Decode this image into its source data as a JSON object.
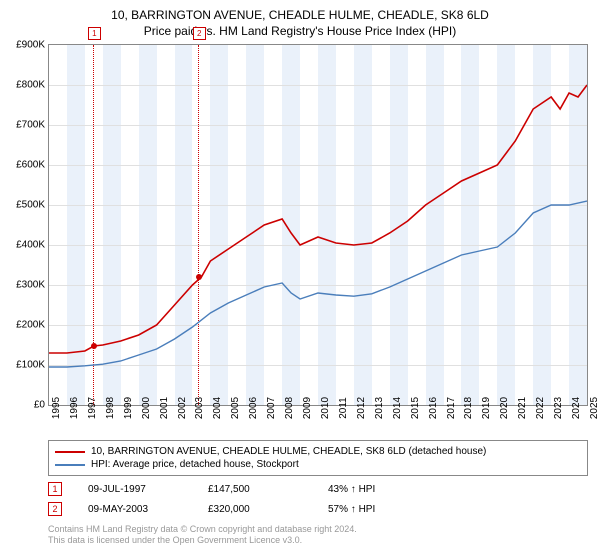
{
  "title_line1": "10, BARRINGTON AVENUE, CHEADLE HULME, CHEADLE, SK8 6LD",
  "title_line2": "Price paid vs. HM Land Registry's House Price Index (HPI)",
  "chart": {
    "type": "line",
    "xlim": [
      1995,
      2025
    ],
    "ylim": [
      0,
      900000
    ],
    "ytick_step": 100000,
    "ytick_labels": [
      "£0",
      "£100K",
      "£200K",
      "£300K",
      "£400K",
      "£500K",
      "£600K",
      "£700K",
      "£800K",
      "£900K"
    ],
    "xtick_step": 1,
    "xtick_labels": [
      "1995",
      "1996",
      "1997",
      "1998",
      "1999",
      "2000",
      "2001",
      "2002",
      "2003",
      "2004",
      "2005",
      "2006",
      "2007",
      "2008",
      "2009",
      "2010",
      "2011",
      "2012",
      "2013",
      "2014",
      "2015",
      "2016",
      "2017",
      "2018",
      "2019",
      "2020",
      "2021",
      "2022",
      "2023",
      "2024",
      "2025"
    ],
    "background_color": "#ffffff",
    "grid_color": "#e0e0e0",
    "shade_band_color": "#eaf1fa",
    "series": [
      {
        "name": "property",
        "color": "#cc0000",
        "width": 1.6,
        "points": [
          [
            1995,
            130000
          ],
          [
            1996,
            130000
          ],
          [
            1997,
            135000
          ],
          [
            1997.5,
            147500
          ],
          [
            1998,
            150000
          ],
          [
            1999,
            160000
          ],
          [
            2000,
            175000
          ],
          [
            2001,
            200000
          ],
          [
            2002,
            250000
          ],
          [
            2003,
            300000
          ],
          [
            2003.5,
            320000
          ],
          [
            2004,
            360000
          ],
          [
            2005,
            390000
          ],
          [
            2006,
            420000
          ],
          [
            2007,
            450000
          ],
          [
            2008,
            465000
          ],
          [
            2008.5,
            430000
          ],
          [
            2009,
            400000
          ],
          [
            2010,
            420000
          ],
          [
            2011,
            405000
          ],
          [
            2012,
            400000
          ],
          [
            2013,
            405000
          ],
          [
            2014,
            430000
          ],
          [
            2015,
            460000
          ],
          [
            2016,
            500000
          ],
          [
            2017,
            530000
          ],
          [
            2018,
            560000
          ],
          [
            2019,
            580000
          ],
          [
            2020,
            600000
          ],
          [
            2021,
            660000
          ],
          [
            2022,
            740000
          ],
          [
            2023,
            770000
          ],
          [
            2023.5,
            740000
          ],
          [
            2024,
            780000
          ],
          [
            2024.5,
            770000
          ],
          [
            2025,
            800000
          ]
        ]
      },
      {
        "name": "hpi",
        "color": "#4a7ebb",
        "width": 1.4,
        "points": [
          [
            1995,
            95000
          ],
          [
            1996,
            95000
          ],
          [
            1997,
            98000
          ],
          [
            1998,
            102000
          ],
          [
            1999,
            110000
          ],
          [
            2000,
            125000
          ],
          [
            2001,
            140000
          ],
          [
            2002,
            165000
          ],
          [
            2003,
            195000
          ],
          [
            2004,
            230000
          ],
          [
            2005,
            255000
          ],
          [
            2006,
            275000
          ],
          [
            2007,
            295000
          ],
          [
            2008,
            305000
          ],
          [
            2008.5,
            280000
          ],
          [
            2009,
            265000
          ],
          [
            2010,
            280000
          ],
          [
            2011,
            275000
          ],
          [
            2012,
            272000
          ],
          [
            2013,
            278000
          ],
          [
            2014,
            295000
          ],
          [
            2015,
            315000
          ],
          [
            2016,
            335000
          ],
          [
            2017,
            355000
          ],
          [
            2018,
            375000
          ],
          [
            2019,
            385000
          ],
          [
            2020,
            395000
          ],
          [
            2021,
            430000
          ],
          [
            2022,
            480000
          ],
          [
            2023,
            500000
          ],
          [
            2024,
            500000
          ],
          [
            2025,
            510000
          ]
        ]
      }
    ],
    "sale_markers": [
      {
        "id": "1",
        "x": 1997.5,
        "y": 147500,
        "color": "#cc0000"
      },
      {
        "id": "2",
        "x": 2003.35,
        "y": 320000,
        "color": "#cc0000"
      }
    ]
  },
  "legend": [
    {
      "color": "#cc0000",
      "label": "10, BARRINGTON AVENUE, CHEADLE HULME, CHEADLE, SK8 6LD (detached house)"
    },
    {
      "color": "#4a7ebb",
      "label": "HPI: Average price, detached house, Stockport"
    }
  ],
  "transactions": [
    {
      "id": "1",
      "color": "#cc0000",
      "date": "09-JUL-1997",
      "price": "£147,500",
      "diff": "43% ↑ HPI"
    },
    {
      "id": "2",
      "color": "#cc0000",
      "date": "09-MAY-2003",
      "price": "£320,000",
      "diff": "57% ↑ HPI"
    }
  ],
  "attribution": [
    "Contains HM Land Registry data © Crown copyright and database right 2024.",
    "This data is licensed under the Open Government Licence v3.0."
  ]
}
